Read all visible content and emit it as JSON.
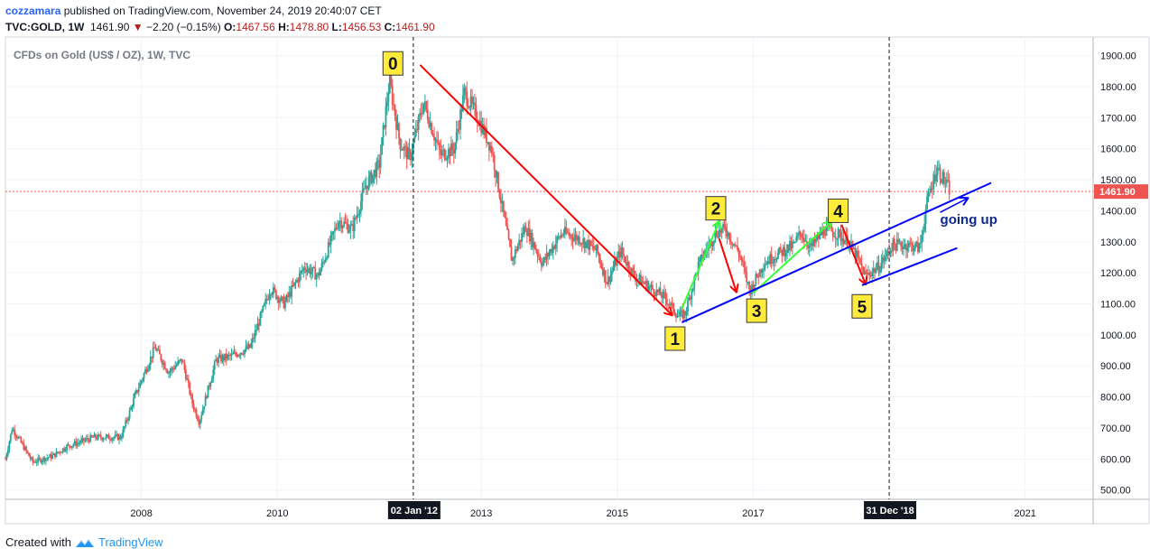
{
  "header": {
    "username": "cozzamara",
    "published_text": "published on TradingView.com, November 24, 2019 20:40:07 CET",
    "symbol": "TVC:GOLD, 1W",
    "last": "1461.90",
    "change_arrow": "▼",
    "change": "−2.20 (−0.15%)",
    "o_label": "O:",
    "o_value": "1467.56",
    "h_label": "H:",
    "h_value": "1478.80",
    "l_label": "L:",
    "l_value": "1456.53",
    "c_label": "C:",
    "c_value": "1461.90"
  },
  "footer": {
    "created_with": "Created with",
    "brand": "TradingView"
  },
  "colors": {
    "up_candle": "#26a69a",
    "down_candle": "#ef5350",
    "red_arrow": "#ff0000",
    "green_arrow": "#33ff33",
    "blue_line": "#0000ff",
    "price_label_bg": "#ef5350",
    "wave_label_bg": "#ffeb3b"
  },
  "chart_data": {
    "type": "candlestick",
    "title": "CFDs on Gold (US$ / OZ), 1W, TVC",
    "ylim": [
      470,
      1960
    ],
    "y_ticks": [
      "1900.00",
      "1800.00",
      "1700.00",
      "1600.00",
      "1500.00",
      "1400.00",
      "1300.00",
      "1200.00",
      "1100.00",
      "1000.00",
      "900.00",
      "800.00",
      "700.00",
      "600.00",
      "500.00"
    ],
    "x_ticks": [
      "2008",
      "2010",
      "2013",
      "2015",
      "2017",
      "2021"
    ],
    "x_tick_values": [
      2008.0,
      2010.0,
      2013.0,
      2015.0,
      2017.0,
      2021.0
    ],
    "x_range": [
      2006.0,
      2022.0
    ],
    "last_price": 1461.9,
    "last_price_label": "1461.90",
    "vertical_markers": [
      {
        "x": 2012.0,
        "label": "02 Jan '12"
      },
      {
        "x": 2019.0,
        "label": "31 Dec '18"
      }
    ],
    "price_path": [
      [
        2006.0,
        600
      ],
      [
        2006.1,
        700
      ],
      [
        2006.4,
        590
      ],
      [
        2006.7,
        610
      ],
      [
        2006.9,
        640
      ],
      [
        2007.3,
        670
      ],
      [
        2007.7,
        670
      ],
      [
        2007.9,
        800
      ],
      [
        2008.2,
        960
      ],
      [
        2008.4,
        880
      ],
      [
        2008.6,
        920
      ],
      [
        2008.75,
        780
      ],
      [
        2008.85,
        720
      ],
      [
        2009.1,
        920
      ],
      [
        2009.3,
        930
      ],
      [
        2009.6,
        960
      ],
      [
        2009.9,
        1150
      ],
      [
        2010.1,
        1100
      ],
      [
        2010.4,
        1220
      ],
      [
        2010.6,
        1190
      ],
      [
        2010.9,
        1370
      ],
      [
        2011.1,
        1340
      ],
      [
        2011.3,
        1480
      ],
      [
        2011.5,
        1550
      ],
      [
        2011.65,
        1820
      ],
      [
        2011.8,
        1620
      ],
      [
        2011.95,
        1570
      ],
      [
        2012.15,
        1750
      ],
      [
        2012.4,
        1580
      ],
      [
        2012.6,
        1600
      ],
      [
        2012.75,
        1780
      ],
      [
        2012.95,
        1700
      ],
      [
        2013.15,
        1600
      ],
      [
        2013.3,
        1420
      ],
      [
        2013.45,
        1240
      ],
      [
        2013.65,
        1350
      ],
      [
        2013.9,
        1230
      ],
      [
        2014.1,
        1300
      ],
      [
        2014.2,
        1330
      ],
      [
        2014.45,
        1310
      ],
      [
        2014.7,
        1270
      ],
      [
        2014.85,
        1170
      ],
      [
        2015.05,
        1270
      ],
      [
        2015.25,
        1190
      ],
      [
        2015.5,
        1150
      ],
      [
        2015.7,
        1120
      ],
      [
        2015.9,
        1060
      ],
      [
        2016.0,
        1070
      ],
      [
        2016.2,
        1230
      ],
      [
        2016.45,
        1330
      ],
      [
        2016.6,
        1340
      ],
      [
        2016.8,
        1260
      ],
      [
        2016.95,
        1140
      ],
      [
        2017.15,
        1230
      ],
      [
        2017.35,
        1260
      ],
      [
        2017.6,
        1290
      ],
      [
        2017.7,
        1330
      ],
      [
        2017.85,
        1280
      ],
      [
        2018.05,
        1340
      ],
      [
        2018.2,
        1330
      ],
      [
        2018.4,
        1300
      ],
      [
        2018.55,
        1240
      ],
      [
        2018.65,
        1190
      ],
      [
        2018.85,
        1220
      ],
      [
        2019.05,
        1290
      ],
      [
        2019.3,
        1290
      ],
      [
        2019.45,
        1280
      ],
      [
        2019.55,
        1420
      ],
      [
        2019.65,
        1500
      ],
      [
        2019.7,
        1540
      ],
      [
        2019.8,
        1500
      ],
      [
        2019.9,
        1462
      ]
    ],
    "annotations": [
      {
        "label": "0",
        "x": 2011.7,
        "y": 1875
      },
      {
        "label": "1",
        "x": 2015.85,
        "y": 988
      },
      {
        "label": "2",
        "x": 2016.45,
        "y": 1408
      },
      {
        "label": "3",
        "x": 2017.05,
        "y": 1078
      },
      {
        "label": "4",
        "x": 2018.25,
        "y": 1400
      },
      {
        "label": "5",
        "x": 2018.6,
        "y": 1092
      }
    ],
    "text_note": {
      "text": "going up",
      "x": 2019.75,
      "y": 1375
    },
    "red_arrows": [
      [
        [
          2012.1,
          1870
        ],
        [
          2015.8,
          1065
        ]
      ],
      [
        [
          2016.5,
          1310
        ],
        [
          2016.75,
          1140
        ]
      ],
      [
        [
          2018.3,
          1355
        ],
        [
          2018.65,
          1165
        ]
      ]
    ],
    "green_arrows": [
      [
        [
          2015.95,
          1085
        ],
        [
          2016.5,
          1365
        ]
      ],
      [
        [
          2017.0,
          1135
        ],
        [
          2018.15,
          1365
        ]
      ]
    ],
    "blue_lines": [
      [
        [
          2015.95,
          1040
        ],
        [
          2020.5,
          1490
        ]
      ],
      [
        [
          2018.6,
          1160
        ],
        [
          2020.0,
          1280
        ]
      ]
    ],
    "blue_arrow": [
      [
        2019.75,
        1395
      ],
      [
        2020.15,
        1440
      ]
    ]
  }
}
